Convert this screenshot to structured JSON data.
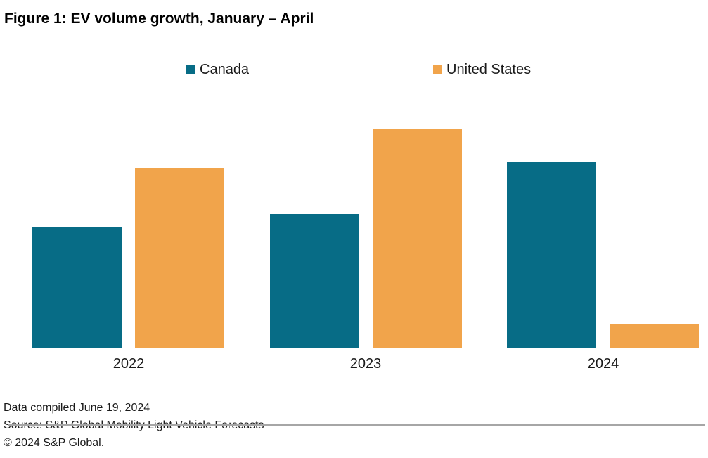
{
  "title": "Figure 1: EV volume growth, January – April",
  "chart_data": {
    "type": "bar",
    "title": "Figure 1: EV volume growth, January – April",
    "categories": [
      "2022",
      "2023",
      "2024"
    ],
    "series": [
      {
        "name": "Canada",
        "color": "#076C86",
        "values": [
          55,
          61,
          85
        ]
      },
      {
        "name": "United States",
        "color": "#F1A44B",
        "values": [
          82,
          100,
          11
        ]
      }
    ],
    "xlabel": "",
    "ylabel": "",
    "values_unit": "relative growth (value axis not shown; 2023 United States bar = 100)",
    "ylim": [
      0,
      100
    ],
    "value_axis_visible": false,
    "grid": false,
    "legend_position": "top",
    "baseline_color": "#A6A6A6"
  },
  "footer": {
    "line1": "Data compiled June 19, 2024",
    "line2": "Source: S&P Global Mobility Light Vehicle Forecasts",
    "line3": "© 2024 S&P Global."
  }
}
